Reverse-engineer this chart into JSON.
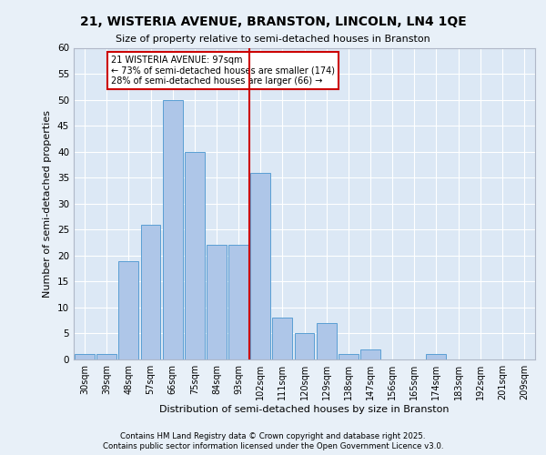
{
  "title1": "21, WISTERIA AVENUE, BRANSTON, LINCOLN, LN4 1QE",
  "title2": "Size of property relative to semi-detached houses in Branston",
  "xlabel": "Distribution of semi-detached houses by size in Branston",
  "ylabel": "Number of semi-detached properties",
  "categories": [
    "30sqm",
    "39sqm",
    "48sqm",
    "57sqm",
    "66sqm",
    "75sqm",
    "84sqm",
    "93sqm",
    "102sqm",
    "111sqm",
    "120sqm",
    "129sqm",
    "138sqm",
    "147sqm",
    "156sqm",
    "165sqm",
    "174sqm",
    "183sqm",
    "192sqm",
    "201sqm",
    "209sqm"
  ],
  "values": [
    1,
    1,
    19,
    26,
    50,
    40,
    22,
    22,
    36,
    8,
    5,
    7,
    1,
    2,
    0,
    0,
    1,
    0,
    0,
    0,
    0
  ],
  "bar_color": "#aec6e8",
  "bar_edge_color": "#5a9fd4",
  "vline_color": "#cc0000",
  "annotation_text": "21 WISTERIA AVENUE: 97sqm\n← 73% of semi-detached houses are smaller (174)\n28% of semi-detached houses are larger (66) →",
  "annotation_box_color": "#ffffff",
  "annotation_box_edge": "#cc0000",
  "ylim": [
    0,
    60
  ],
  "yticks": [
    0,
    5,
    10,
    15,
    20,
    25,
    30,
    35,
    40,
    45,
    50,
    55,
    60
  ],
  "footnote1": "Contains HM Land Registry data © Crown copyright and database right 2025.",
  "footnote2": "Contains public sector information licensed under the Open Government Licence v3.0.",
  "bg_color": "#e8f0f8",
  "plot_bg_color": "#dce8f5"
}
